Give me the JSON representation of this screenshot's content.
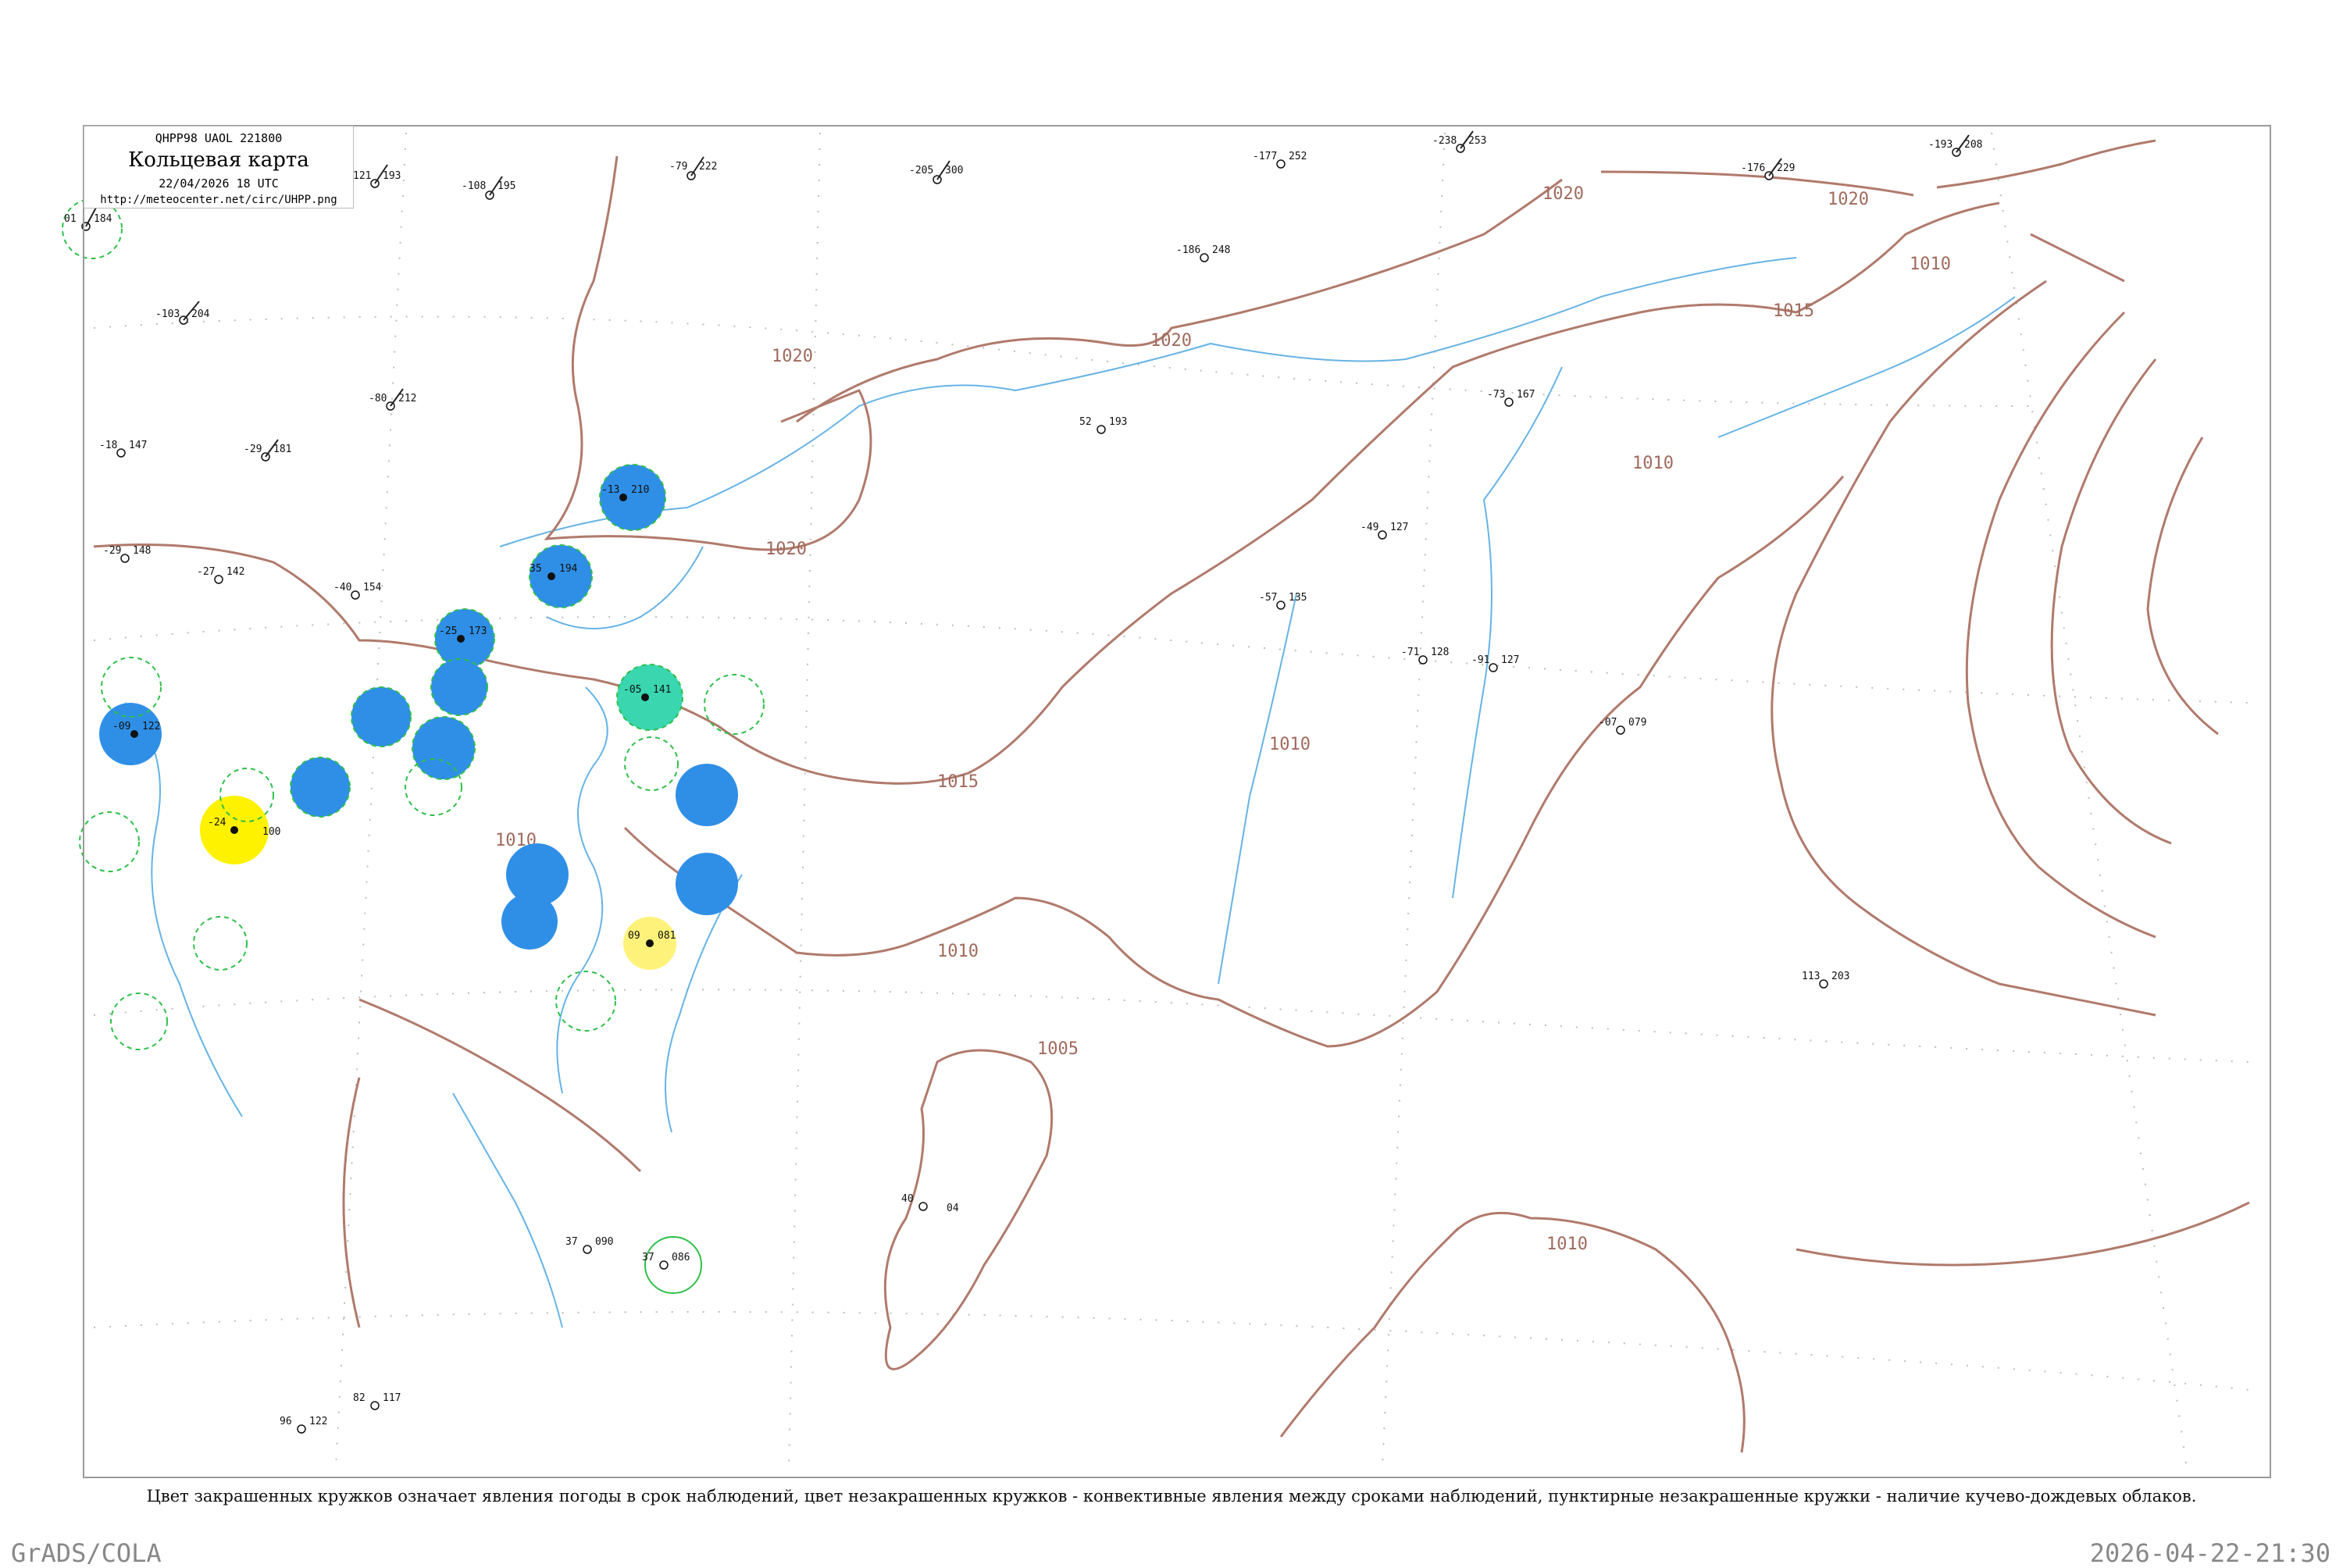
{
  "title": {
    "code": "QHPP98  UAOL  221800",
    "main": "Кольцевая карта",
    "time": "22/04/2026 18 UTC",
    "url": "http://meteocenter.net/circ/UHPP.png"
  },
  "caption": "Цвет закрашенных кружков означает явления погоды в срок наблюдений, цвет незакрашенных кружков - конвективные явления между сроками наблюдений, пунктирные незакрашенные кружки - наличие кучево-дождевых облаков.",
  "footer": {
    "left": "GrADS/COLA",
    "right": "2026-04-22-21:30"
  },
  "isobar_labels": [
    "1020",
    "1020",
    "1020",
    "1020",
    "1020",
    "1015",
    "1015",
    "1010",
    "1010",
    "1010",
    "1010",
    "1010",
    "1010",
    "1005"
  ],
  "colors": {
    "isobar": "#b07a6c",
    "coastline": "#66b3e6",
    "snow_fill": "#2f8fe6",
    "mixed_fill": "#39d6b0",
    "rain_fill": "#fff200",
    "cb_dashed_ring": "#2fbf4a"
  },
  "stations": [
    {
      "icon": "cb-dashed-ring",
      "p": "184",
      "t": "01"
    },
    {
      "icon": "wind-barb",
      "p": "204",
      "t": "-103"
    },
    {
      "icon": "wind-barb",
      "p": "193",
      "t": "121"
    },
    {
      "icon": "wind-barb",
      "p": "195",
      "t": "-108"
    },
    {
      "icon": "wind-barb",
      "p": "222",
      "t": "-79"
    },
    {
      "icon": "wind-barb",
      "p": "300",
      "t": "-205"
    },
    {
      "icon": "wind-barb",
      "p": "252",
      "t": "-177"
    },
    {
      "icon": "wind-barb",
      "p": "253",
      "t": "-238"
    },
    {
      "icon": "wind-barb",
      "p": "229",
      "t": "-176"
    },
    {
      "icon": "wind-barb",
      "p": "208",
      "t": "-193"
    },
    {
      "icon": "wind-barb",
      "p": "212",
      "t": "-80"
    },
    {
      "icon": "wind-barb",
      "p": "181",
      "t": "-29"
    },
    {
      "icon": "wind-barb",
      "p": "147",
      "t": "-18"
    },
    {
      "icon": "wind-barb",
      "p": "148",
      "t": "-29"
    },
    {
      "icon": "wind-barb",
      "p": "142",
      "t": "-27"
    },
    {
      "icon": "wind-barb",
      "p": "154",
      "t": "-40"
    },
    {
      "icon": "snow-filled",
      "p": "210",
      "t": "-13"
    },
    {
      "icon": "snow-filled",
      "p": "194",
      "t": "35"
    },
    {
      "icon": "snow-filled",
      "p": "173",
      "t": "-25"
    },
    {
      "icon": "snow-filled",
      "p": "122",
      "t": "-09"
    },
    {
      "icon": "mixed-filled",
      "p": "141",
      "t": "-05"
    },
    {
      "icon": "rain-filled",
      "p": "100",
      "t": "-24"
    },
    {
      "icon": "rain-filled",
      "p": "081",
      "t": "09"
    },
    {
      "icon": "wind-barb",
      "p": "193",
      "t": "52"
    },
    {
      "icon": "wind-barb",
      "p": "248",
      "t": "-186"
    },
    {
      "icon": "wind-barb",
      "p": "167",
      "t": "-73"
    },
    {
      "icon": "wind-barb",
      "p": "127",
      "t": "-49"
    },
    {
      "icon": "wind-barb",
      "p": "135",
      "t": "-57"
    },
    {
      "icon": "wind-barb",
      "p": "128",
      "t": "-71"
    },
    {
      "icon": "wind-barb",
      "p": "127",
      "t": "-91"
    },
    {
      "icon": "wind-barb",
      "p": "079",
      "t": "-07"
    },
    {
      "icon": "wind-barb",
      "p": "203",
      "t": "113"
    },
    {
      "icon": "wind-barb",
      "p": "04",
      "t": "40"
    },
    {
      "icon": "cb-dashed-ring",
      "p": "086",
      "t": "37"
    },
    {
      "icon": "wind-barb",
      "p": "090",
      "t": "37"
    },
    {
      "icon": "wind-barb",
      "p": "122",
      "t": "96"
    },
    {
      "icon": "wind-barb",
      "p": "117",
      "t": "82"
    }
  ]
}
